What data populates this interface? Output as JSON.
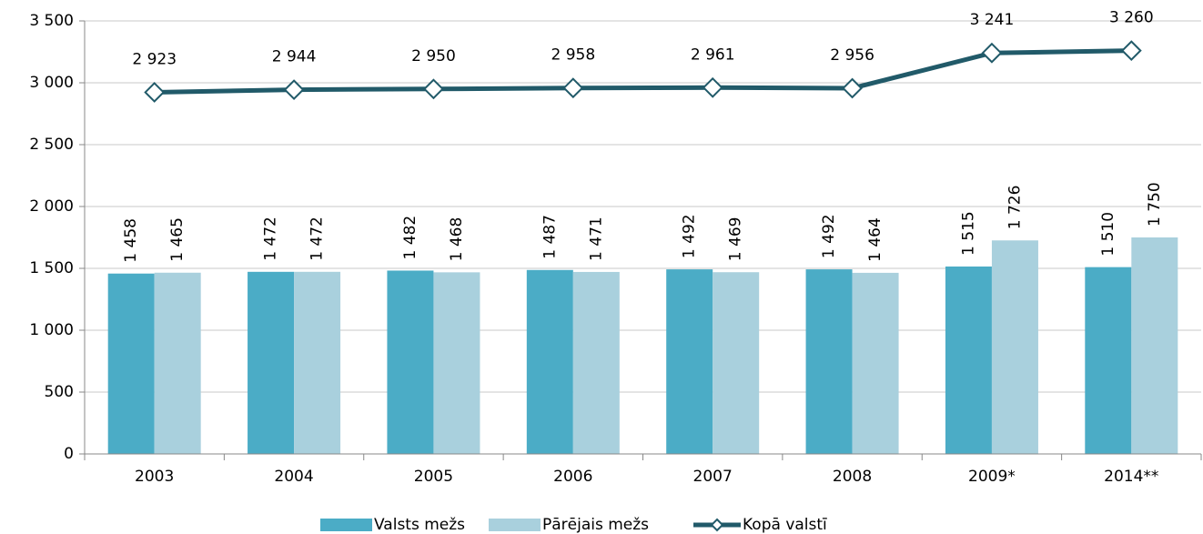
{
  "chart_data": {
    "type": "bar",
    "categories": [
      "2003",
      "2004",
      "2005",
      "2006",
      "2007",
      "2008",
      "2009*",
      "2014**"
    ],
    "series": [
      {
        "name": "Valsts mežs",
        "color": "#4bacc6",
        "type": "bar",
        "values": [
          1458,
          1472,
          1482,
          1487,
          1492,
          1492,
          1515,
          1510
        ],
        "value_labels": [
          "1 458",
          "1 472",
          "1 482",
          "1 487",
          "1 492",
          "1 492",
          "1 515",
          "1 510"
        ]
      },
      {
        "name": "Pārējais mežs",
        "color": "#a9d0dd",
        "type": "bar",
        "values": [
          1465,
          1472,
          1468,
          1471,
          1469,
          1464,
          1726,
          1750
        ],
        "value_labels": [
          "1 465",
          "1 472",
          "1 468",
          "1 471",
          "1 469",
          "1 464",
          "1 726",
          "1 750"
        ]
      },
      {
        "name": "Kopā valstī",
        "color": "#215a69",
        "type": "line",
        "values": [
          2923,
          2944,
          2950,
          2958,
          2961,
          2956,
          3241,
          3260
        ],
        "value_labels": [
          "2 923",
          "2 944",
          "2 950",
          "2 958",
          "2 961",
          "2 956",
          "3 241",
          "3 260"
        ]
      }
    ],
    "ylim": [
      0,
      3500
    ],
    "yticks": [
      0,
      500,
      {
        "value": 1000,
        "label": "1 000"
      },
      {
        "value": 1500,
        "label": "1 500"
      },
      {
        "value": 2000,
        "label": "2 000"
      },
      {
        "value": 2500,
        "label": "2 500"
      },
      {
        "value": 3000,
        "label": "3 000"
      },
      {
        "value": 3500,
        "label": "3 500"
      }
    ],
    "grid": true,
    "legend": "bottom"
  }
}
